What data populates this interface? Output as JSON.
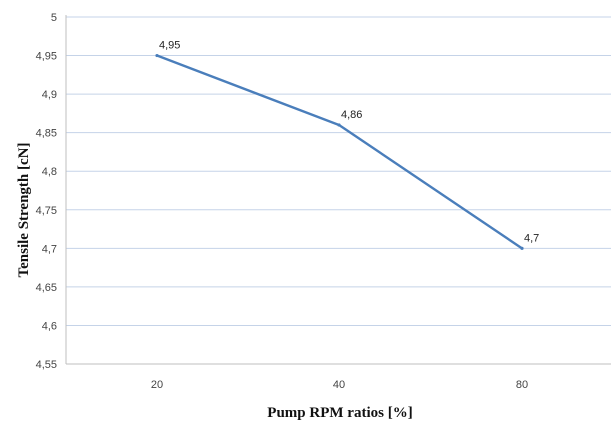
{
  "chart_data": {
    "type": "line",
    "title": "",
    "xlabel": "Pump RPM ratios [%]",
    "ylabel": "Tensile Strength [cN]",
    "categories": [
      "20",
      "40",
      "80"
    ],
    "series": [
      {
        "values": [
          4.95,
          4.86,
          4.7
        ],
        "labels": [
          "4,95",
          "4,86",
          "4,7"
        ]
      }
    ],
    "ylim": [
      4.55,
      5.0
    ],
    "yticks": [
      4.55,
      4.6,
      4.65,
      4.7,
      4.75,
      4.8,
      4.85,
      4.9,
      4.95,
      5.0
    ],
    "ytick_labels": [
      "4,55",
      "4,6",
      "4,65",
      "4,7",
      "4,75",
      "4,8",
      "4,85",
      "4,9",
      "4,95",
      "5"
    ],
    "grid": "horizontal",
    "legend": "none",
    "colors": {
      "line": "#4a7ebb",
      "grid": "#c5d3e8",
      "axis": "#bfbfbf"
    }
  }
}
